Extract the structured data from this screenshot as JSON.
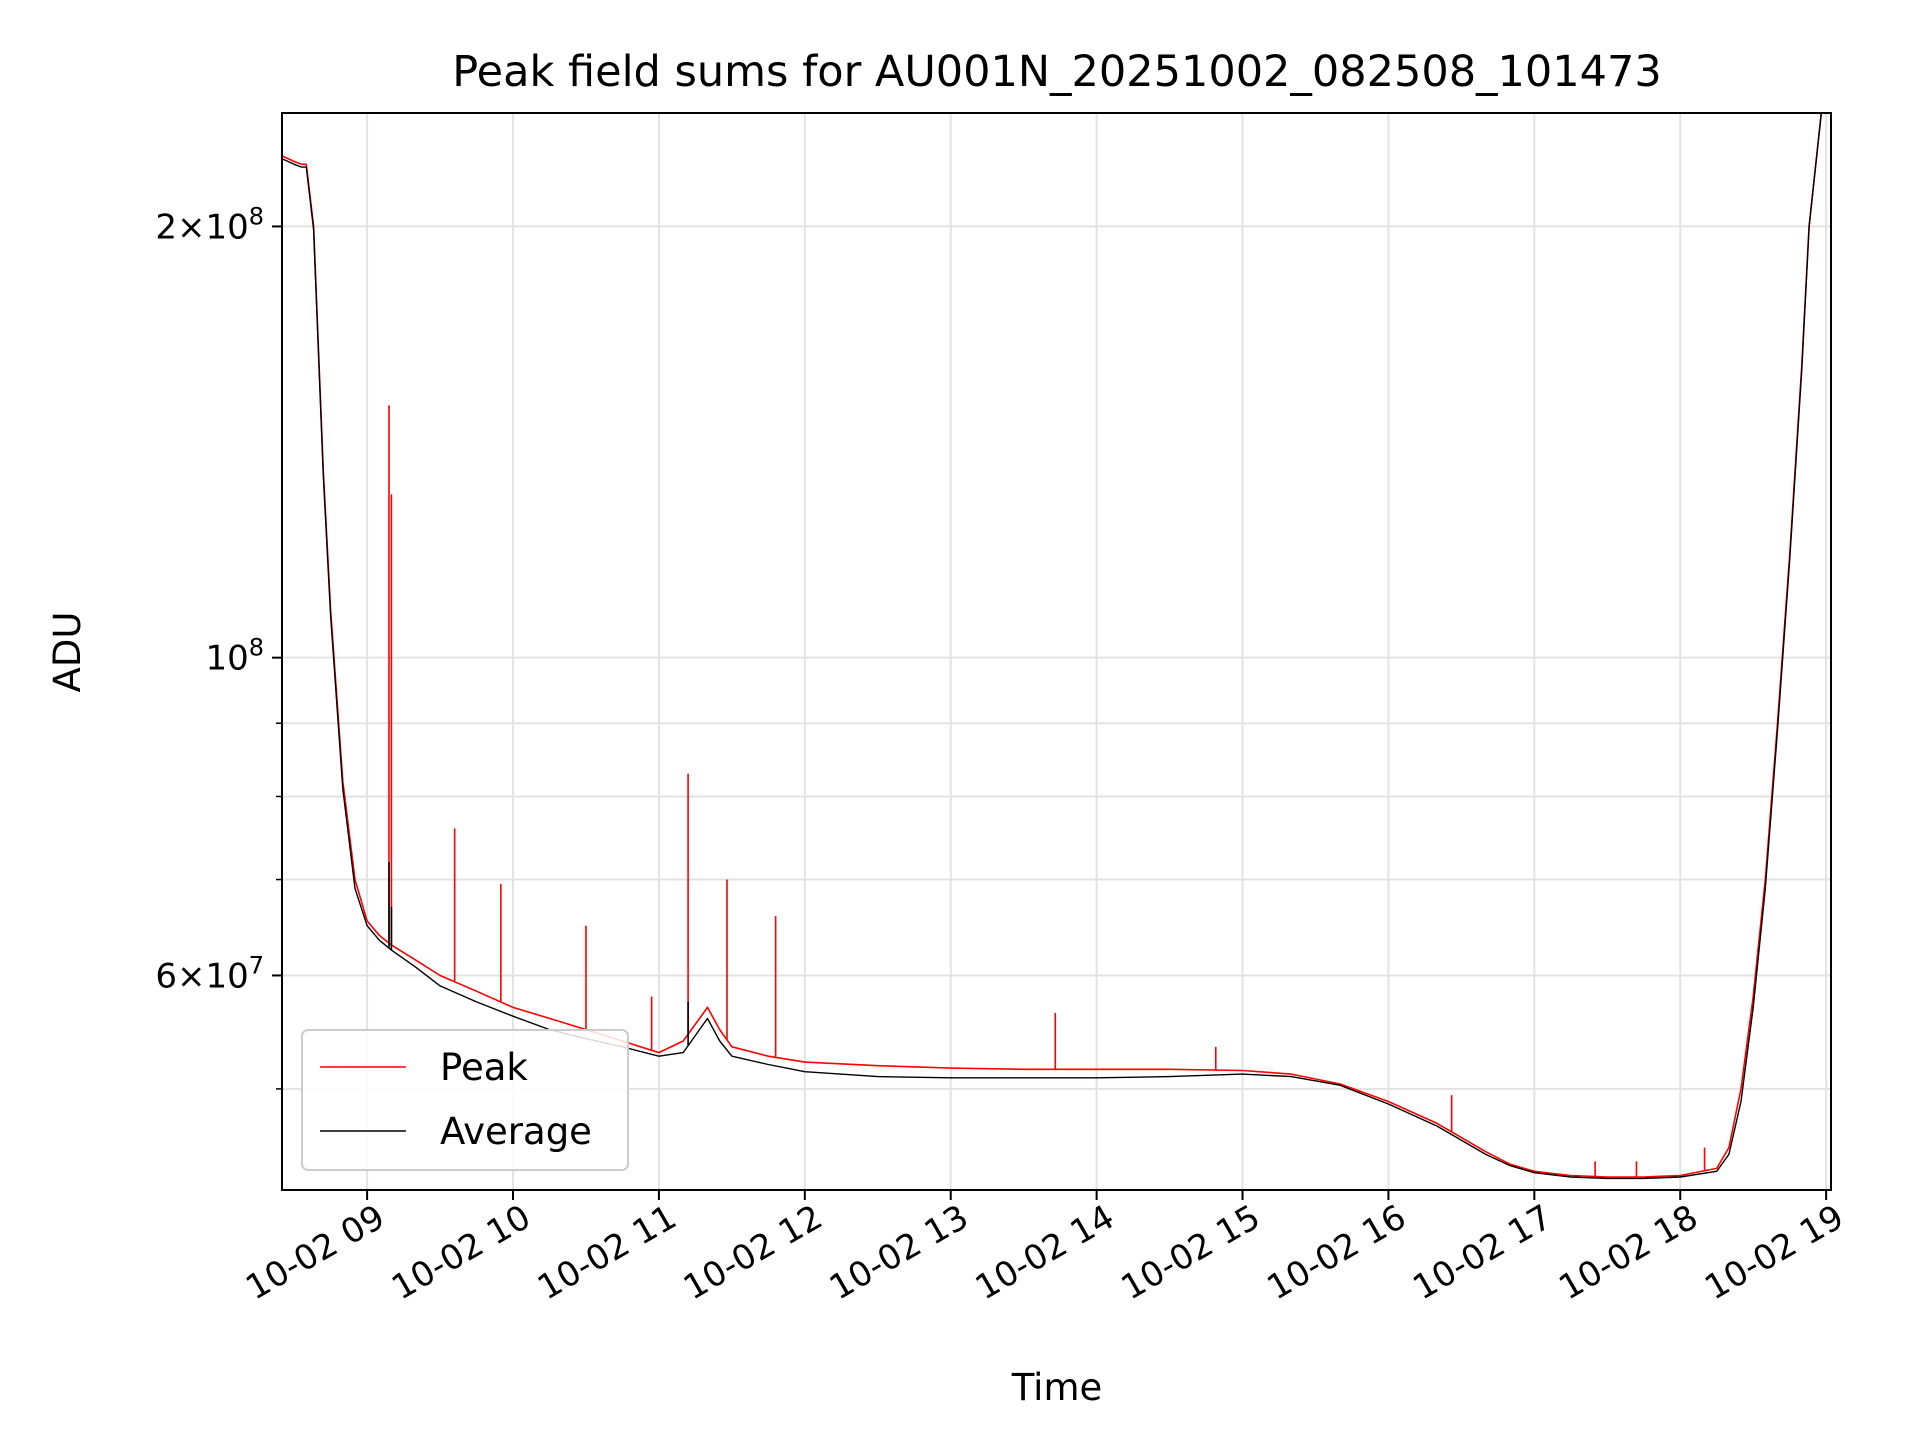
{
  "chart_data": {
    "type": "line",
    "title": "Peak field sums for AU001N_20251002_082508_101473",
    "xlabel": "Time",
    "ylabel": "ADU",
    "x_axis": "time",
    "xlim": [
      "2025-10-02 08:25",
      "2025-10-02 19:02"
    ],
    "ylim": [
      42500000,
      240000000
    ],
    "yscale": "log",
    "grid": true,
    "legend_position": "lower-left",
    "colors": {
      "Peak": "#ff0000",
      "Average": "#000000"
    },
    "x_ticks": [
      "10-02 09",
      "10-02 10",
      "10-02 11",
      "10-02 12",
      "10-02 13",
      "10-02 14",
      "10-02 15",
      "10-02 16",
      "10-02 17",
      "10-02 18",
      "10-02 19"
    ],
    "y_ticks": [
      {
        "value": 60000000,
        "mantissa": "6",
        "exponent": "7"
      },
      {
        "value": 100000000,
        "mantissa": "",
        "exponent": "8"
      },
      {
        "value": 200000000,
        "mantissa": "2",
        "exponent": "8"
      }
    ],
    "series": [
      {
        "name": "Peak",
        "x": [
          "08:25",
          "08:30",
          "08:33",
          "08:35",
          "08:38",
          "08:42",
          "08:45",
          "08:50",
          "08:55",
          "09:00",
          "09:05",
          "09:10",
          "09:20",
          "09:30",
          "09:45",
          "10:00",
          "10:15",
          "10:30",
          "10:45",
          "11:00",
          "11:10",
          "11:20",
          "11:25",
          "11:30",
          "11:45",
          "12:00",
          "12:30",
          "13:00",
          "13:30",
          "14:00",
          "14:30",
          "15:00",
          "15:20",
          "15:40",
          "16:00",
          "16:20",
          "16:40",
          "16:50",
          "17:00",
          "17:15",
          "17:30",
          "17:45",
          "18:00",
          "18:15",
          "18:20",
          "18:25",
          "18:30",
          "18:35",
          "18:40",
          "18:45",
          "18:50",
          "18:53",
          "18:58"
        ],
        "y": [
          224000000,
          222000000,
          221000000,
          221000000,
          200000000,
          135000000,
          108000000,
          82000000,
          70000000,
          65500000,
          64000000,
          63000000,
          61500000,
          60000000,
          58500000,
          57000000,
          56000000,
          55000000,
          54000000,
          53000000,
          54000000,
          57000000,
          55000000,
          53500000,
          52700000,
          52200000,
          51900000,
          51700000,
          51600000,
          51600000,
          51600000,
          51500000,
          51200000,
          50400000,
          49000000,
          47300000,
          45200000,
          44300000,
          43800000,
          43500000,
          43400000,
          43400000,
          43500000,
          44000000,
          45500000,
          50000000,
          58000000,
          70000000,
          90000000,
          118000000,
          160000000,
          200000000,
          240000000
        ],
        "spikes": [
          {
            "x": "09:09",
            "y": 150000000
          },
          {
            "x": "09:10",
            "y": 130000000
          },
          {
            "x": "09:36",
            "y": 76000000
          },
          {
            "x": "09:55",
            "y": 69500000
          },
          {
            "x": "10:30",
            "y": 65000000
          },
          {
            "x": "10:57",
            "y": 58000000
          },
          {
            "x": "11:12",
            "y": 83000000
          },
          {
            "x": "11:28",
            "y": 70000000
          },
          {
            "x": "11:48",
            "y": 66000000
          },
          {
            "x": "13:43",
            "y": 56500000
          },
          {
            "x": "14:49",
            "y": 53500000
          },
          {
            "x": "16:26",
            "y": 49500000
          },
          {
            "x": "17:25",
            "y": 44500000
          },
          {
            "x": "17:42",
            "y": 44500000
          },
          {
            "x": "18:10",
            "y": 45500000
          }
        ]
      },
      {
        "name": "Average",
        "x": [
          "08:25",
          "08:30",
          "08:33",
          "08:35",
          "08:38",
          "08:42",
          "08:45",
          "08:50",
          "08:55",
          "09:00",
          "09:05",
          "09:10",
          "09:20",
          "09:30",
          "09:45",
          "10:00",
          "10:15",
          "10:30",
          "10:45",
          "11:00",
          "11:10",
          "11:20",
          "11:25",
          "11:30",
          "11:45",
          "12:00",
          "12:30",
          "13:00",
          "13:30",
          "14:00",
          "14:30",
          "15:00",
          "15:20",
          "15:40",
          "16:00",
          "16:20",
          "16:40",
          "16:50",
          "17:00",
          "17:15",
          "17:30",
          "17:45",
          "18:00",
          "18:15",
          "18:20",
          "18:25",
          "18:30",
          "18:35",
          "18:40",
          "18:45",
          "18:50",
          "18:53",
          "18:58"
        ],
        "y": [
          223000000,
          221000000,
          220000000,
          220000000,
          199000000,
          134000000,
          107000000,
          81000000,
          69000000,
          65000000,
          63500000,
          62500000,
          60800000,
          59000000,
          57500000,
          56200000,
          55000000,
          54200000,
          53500000,
          52700000,
          53000000,
          56000000,
          54000000,
          52700000,
          52000000,
          51400000,
          51000000,
          50900000,
          50900000,
          50900000,
          51000000,
          51200000,
          51000000,
          50300000,
          48800000,
          47100000,
          45000000,
          44200000,
          43700000,
          43400000,
          43300000,
          43300000,
          43400000,
          43800000,
          45000000,
          49000000,
          57000000,
          69000000,
          89000000,
          117000000,
          159000000,
          200000000,
          240000000
        ],
        "spikes": [
          {
            "x": "09:09",
            "y": 72000000
          },
          {
            "x": "09:10",
            "y": 67000000
          },
          {
            "x": "11:12",
            "y": 57500000
          }
        ]
      }
    ]
  }
}
